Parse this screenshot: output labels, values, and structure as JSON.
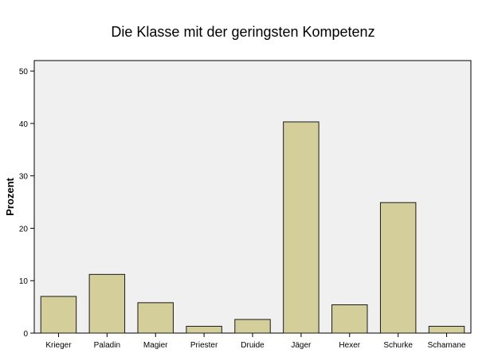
{
  "chart_data": {
    "type": "bar",
    "title": "Die Klasse mit der geringsten Kompetenz",
    "xlabel": "",
    "ylabel": "Prozent",
    "categories": [
      "Krieger",
      "Paladin",
      "Magier",
      "Priester",
      "Druide",
      "Jäger",
      "Hexer",
      "Schurke",
      "Schamane"
    ],
    "values": [
      7.0,
      11.2,
      5.8,
      1.3,
      2.6,
      40.3,
      5.4,
      24.9,
      1.3
    ],
    "ylim": [
      0,
      52
    ],
    "yticks": [
      0,
      10,
      20,
      30,
      40,
      50
    ],
    "grid": false,
    "legend": "none",
    "colors": {
      "bar_fill": "#d4cf9a",
      "bar_stroke": "#1a1a1a",
      "plot_background": "#f0f0f0",
      "axis": "#000000"
    }
  }
}
